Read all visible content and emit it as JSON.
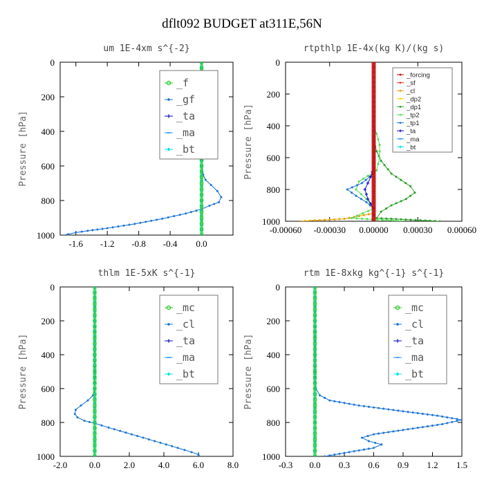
{
  "main_title": "dflt092  BUDGET at311E,56N",
  "chart_data": [
    {
      "type": "line",
      "title": "um  1E-4xm s^{-2}",
      "ylabel": "Pressure [hPa]",
      "xlim": [
        -1.8,
        0.4
      ],
      "ylim": [
        1000,
        0
      ],
      "xticks": [
        -1.6,
        -1.2,
        -0.8,
        -0.4,
        0.0
      ],
      "xtick_labels": [
        "-1.6",
        "-1.2",
        "-0.8",
        "-0.4",
        "0.0"
      ],
      "yticks": [
        0,
        200,
        400,
        600,
        800,
        1000
      ],
      "ytick_labels": [
        "0",
        "200",
        "400",
        "600",
        "800",
        "1000"
      ],
      "legend_position": "top-right",
      "legend_style": "big",
      "series": [
        {
          "name": "_f",
          "color": "#22cc22",
          "marker": "circle",
          "points": [
            [
              0,
              0
            ],
            [
              0,
              100
            ],
            [
              0,
              200
            ],
            [
              0,
              300
            ],
            [
              0,
              400
            ],
            [
              0,
              500
            ],
            [
              0,
              600
            ],
            [
              0,
              700
            ],
            [
              0,
              800
            ],
            [
              0,
              900
            ],
            [
              0,
              1000
            ]
          ]
        },
        {
          "name": "_gf",
          "color": "#1f77d4",
          "marker": "dot",
          "points": [
            [
              0,
              0
            ],
            [
              0,
              500
            ],
            [
              0,
              600
            ],
            [
              0.02,
              650
            ],
            [
              0.05,
              680
            ],
            [
              0.12,
              710
            ],
            [
              0.2,
              745
            ],
            [
              0.25,
              780
            ],
            [
              0.22,
              810
            ],
            [
              0.1,
              830
            ],
            [
              0.0,
              850
            ],
            [
              -0.2,
              875
            ],
            [
              -0.5,
              905
            ],
            [
              -0.85,
              935
            ],
            [
              -1.2,
              960
            ],
            [
              -1.45,
              975
            ],
            [
              -1.6,
              985
            ],
            [
              -1.7,
              995
            ],
            [
              -1.72,
              1000
            ]
          ]
        },
        {
          "name": "_ta",
          "color": "#1111cc",
          "marker": "plus",
          "points": [
            [
              0,
              0
            ],
            [
              0,
              1000
            ]
          ]
        },
        {
          "name": "_ma",
          "color": "#1e90ff",
          "marker": "dash",
          "points": [
            [
              0,
              0
            ],
            [
              0,
              1000
            ]
          ]
        },
        {
          "name": "_bt",
          "color": "#00e5e5",
          "marker": "diamond",
          "points": [
            [
              0,
              0
            ],
            [
              0,
              1000
            ]
          ]
        }
      ]
    },
    {
      "type": "line",
      "title": "rtpthlp  1E-4x(kg K)/(kg s)",
      "ylabel": "Pressure [hPa]",
      "xlim": [
        -0.0006,
        0.0006
      ],
      "ylim": [
        1000,
        0
      ],
      "xticks": [
        -0.0006,
        -0.0003,
        0.0,
        0.0003,
        0.0006
      ],
      "xtick_labels": [
        "-0.00060",
        "-0.00030",
        "0.00000",
        "0.00030",
        "0.00060"
      ],
      "yticks": [
        0,
        200,
        400,
        600,
        800,
        1000
      ],
      "ytick_labels": [
        "0",
        "200",
        "400",
        "600",
        "800",
        "1000"
      ],
      "legend_position": "top-right",
      "legend_style": "small",
      "series": [
        {
          "name": "_forcing",
          "color": "#cc0000",
          "marker": "dot",
          "points": [
            [
              0,
              0
            ],
            [
              0,
              1000
            ]
          ]
        },
        {
          "name": "_sf",
          "color": "#ff3333",
          "marker": "dot",
          "points": [
            [
              0,
              0
            ],
            [
              0,
              1000
            ]
          ]
        },
        {
          "name": "_cl",
          "color": "#e8a000",
          "marker": "dot",
          "points": [
            [
              0,
              0
            ],
            [
              0,
              950
            ],
            [
              -0.0002,
              985
            ],
            [
              -0.0005,
              1000
            ]
          ]
        },
        {
          "name": "_dp2",
          "color": "#ffd400",
          "marker": "dot",
          "points": [
            [
              0,
              0
            ],
            [
              0,
              1000
            ]
          ]
        },
        {
          "name": "_dp1",
          "color": "#2aa02a",
          "marker": "dot",
          "points": [
            [
              0,
              0
            ],
            [
              0,
              500
            ],
            [
              2e-05,
              560
            ],
            [
              5e-05,
              620
            ],
            [
              0.00012,
              700
            ],
            [
              0.00025,
              780
            ],
            [
              0.00028,
              820
            ],
            [
              0.00022,
              860
            ],
            [
              0.00012,
              900
            ],
            [
              5e-05,
              940
            ],
            [
              2e-05,
              980
            ],
            [
              0.00045,
              1000
            ]
          ]
        },
        {
          "name": "_tp2",
          "color": "#55dd55",
          "marker": "dot",
          "points": [
            [
              0,
              0
            ],
            [
              0,
              400
            ],
            [
              2e-05,
              450
            ],
            [
              4e-05,
              520
            ],
            [
              4e-05,
              600
            ],
            [
              2e-05,
              680
            ],
            [
              -0.0001,
              750
            ],
            [
              -0.00012,
              800
            ],
            [
              -5e-05,
              860
            ],
            [
              0.0,
              920
            ],
            [
              -0.00015,
              980
            ],
            [
              0.0002,
              1000
            ]
          ]
        },
        {
          "name": "_tp1",
          "color": "#1f77d4",
          "marker": "dot",
          "points": [
            [
              0,
              0
            ],
            [
              0,
              700
            ],
            [
              -8e-05,
              760
            ],
            [
              -0.00018,
              800
            ],
            [
              -0.00012,
              840
            ],
            [
              -5e-05,
              880
            ],
            [
              0.0,
              920
            ],
            [
              0,
              1000
            ]
          ]
        },
        {
          "name": "_ta",
          "color": "#1111cc",
          "marker": "plus",
          "points": [
            [
              0,
              0
            ],
            [
              0,
              660
            ],
            [
              -2e-05,
              720
            ],
            [
              -6e-05,
              800
            ],
            [
              -4e-05,
              860
            ],
            [
              0.0,
              920
            ],
            [
              0,
              1000
            ]
          ]
        },
        {
          "name": "_ma",
          "color": "#1e90ff",
          "marker": "dash",
          "points": [
            [
              0,
              0
            ],
            [
              0,
              1000
            ]
          ]
        },
        {
          "name": "_bt",
          "color": "#00e5e5",
          "marker": "diamond",
          "points": [
            [
              0,
              0
            ],
            [
              0,
              1000
            ]
          ]
        }
      ]
    },
    {
      "type": "line",
      "title": "thlm  1E-5xK s^{-1}",
      "ylabel": "Pressure [hPa]",
      "xlim": [
        -2.0,
        8.0
      ],
      "ylim": [
        1000,
        0
      ],
      "xticks": [
        -2.0,
        0.0,
        2.0,
        4.0,
        6.0,
        8.0
      ],
      "xtick_labels": [
        "-2.0",
        "0.0",
        "2.0",
        "4.0",
        "6.0",
        "8.0"
      ],
      "yticks": [
        0,
        200,
        400,
        600,
        800,
        1000
      ],
      "ytick_labels": [
        "0",
        "200",
        "400",
        "600",
        "800",
        "1000"
      ],
      "legend_position": "top-right",
      "legend_style": "big",
      "series": [
        {
          "name": "_mc",
          "color": "#22cc22",
          "marker": "circle",
          "points": [
            [
              0,
              0
            ],
            [
              0,
              100
            ],
            [
              0,
              200
            ],
            [
              0,
              300
            ],
            [
              0,
              400
            ],
            [
              0,
              500
            ],
            [
              0,
              600
            ],
            [
              0,
              700
            ],
            [
              0,
              800
            ],
            [
              0,
              900
            ],
            [
              0,
              1000
            ]
          ]
        },
        {
          "name": "_cl",
          "color": "#1f77d4",
          "marker": "dot",
          "points": [
            [
              0,
              0
            ],
            [
              0,
              500
            ],
            [
              0,
              600
            ],
            [
              -0.1,
              640
            ],
            [
              -0.4,
              670
            ],
            [
              -0.8,
              700
            ],
            [
              -1.1,
              725
            ],
            [
              -1.15,
              750
            ],
            [
              -1.0,
              770
            ],
            [
              -0.6,
              790
            ],
            [
              0.0,
              805
            ],
            [
              0.8,
              830
            ],
            [
              1.8,
              860
            ],
            [
              2.8,
              890
            ],
            [
              3.8,
              920
            ],
            [
              4.8,
              950
            ],
            [
              5.6,
              975
            ],
            [
              6.0,
              990
            ],
            [
              6.05,
              1000
            ]
          ]
        },
        {
          "name": "_ta",
          "color": "#1111cc",
          "marker": "plus",
          "points": [
            [
              0,
              0
            ],
            [
              0,
              1000
            ]
          ]
        },
        {
          "name": "_ma",
          "color": "#1e90ff",
          "marker": "dash",
          "points": [
            [
              0,
              0
            ],
            [
              0,
              1000
            ]
          ]
        },
        {
          "name": "_bt",
          "color": "#00e5e5",
          "marker": "diamond",
          "points": [
            [
              0,
              0
            ],
            [
              0,
              1000
            ]
          ]
        }
      ]
    },
    {
      "type": "line",
      "title": "rtm  1E-8xkg kg^{-1} s^{-1}",
      "ylabel": "Pressure [hPa]",
      "xlim": [
        -0.3,
        1.5
      ],
      "ylim": [
        1000,
        0
      ],
      "xticks": [
        -0.3,
        0.0,
        0.3,
        0.6,
        0.9,
        1.2,
        1.5
      ],
      "xtick_labels": [
        "-0.3",
        "0.0",
        "0.3",
        "0.6",
        "0.9",
        "1.2",
        "1.5"
      ],
      "yticks": [
        0,
        200,
        400,
        600,
        800,
        1000
      ],
      "ytick_labels": [
        "0",
        "200",
        "400",
        "600",
        "800",
        "1000"
      ],
      "legend_position": "top-right",
      "legend_style": "big",
      "series": [
        {
          "name": "_mc",
          "color": "#22cc22",
          "marker": "circle",
          "points": [
            [
              0,
              0
            ],
            [
              0,
              100
            ],
            [
              0,
              200
            ],
            [
              0,
              300
            ],
            [
              0,
              400
            ],
            [
              0,
              500
            ],
            [
              0,
              600
            ],
            [
              0,
              700
            ],
            [
              0,
              800
            ],
            [
              0,
              900
            ],
            [
              0,
              1000
            ]
          ]
        },
        {
          "name": "_cl",
          "color": "#1f77d4",
          "marker": "dot",
          "points": [
            [
              0,
              0
            ],
            [
              0,
              560
            ],
            [
              0.01,
              600
            ],
            [
              0.05,
              640
            ],
            [
              0.15,
              670
            ],
            [
              0.45,
              700
            ],
            [
              0.85,
              730
            ],
            [
              1.25,
              760
            ],
            [
              1.5,
              785
            ],
            [
              1.3,
              810
            ],
            [
              0.95,
              840
            ],
            [
              0.6,
              870
            ],
            [
              0.48,
              890
            ],
            [
              0.55,
              910
            ],
            [
              0.68,
              930
            ],
            [
              0.6,
              950
            ],
            [
              0.4,
              970
            ],
            [
              0.25,
              985
            ],
            [
              0.1,
              1000
            ]
          ]
        },
        {
          "name": "_ta",
          "color": "#1111cc",
          "marker": "plus",
          "points": [
            [
              0,
              0
            ],
            [
              0,
              1000
            ]
          ]
        },
        {
          "name": "_ma",
          "color": "#1e90ff",
          "marker": "dash",
          "points": [
            [
              0,
              0
            ],
            [
              0,
              1000
            ]
          ]
        },
        {
          "name": "_bt",
          "color": "#00e5e5",
          "marker": "diamond",
          "points": [
            [
              0,
              0
            ],
            [
              0,
              1000
            ]
          ]
        }
      ]
    }
  ]
}
